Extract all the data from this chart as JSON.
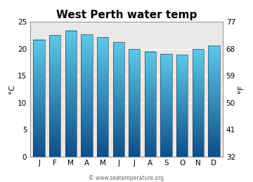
{
  "months": [
    "J",
    "F",
    "M",
    "A",
    "M",
    "J",
    "J",
    "A",
    "S",
    "O",
    "N",
    "D"
  ],
  "values_c": [
    21.7,
    22.6,
    23.4,
    22.7,
    22.2,
    21.2,
    19.9,
    19.5,
    19.0,
    18.9,
    19.9,
    20.6
  ],
  "ylim_c": [
    0,
    25
  ],
  "yticks_c": [
    0,
    5,
    10,
    15,
    20,
    25
  ],
  "yticks_f": [
    32,
    41,
    50,
    59,
    68,
    77
  ],
  "ylabel_left": "°C",
  "ylabel_right": "°F",
  "title": "West Perth water temp",
  "bar_color_top": "#5bc8e8",
  "bar_color_bottom": "#0d4f8b",
  "bg_color": "#ffffff",
  "plot_bg_color": "#e8e8e8",
  "watermark": "© www.seatemperature.org",
  "title_fontsize": 11,
  "tick_fontsize": 7.5,
  "label_fontsize": 8
}
